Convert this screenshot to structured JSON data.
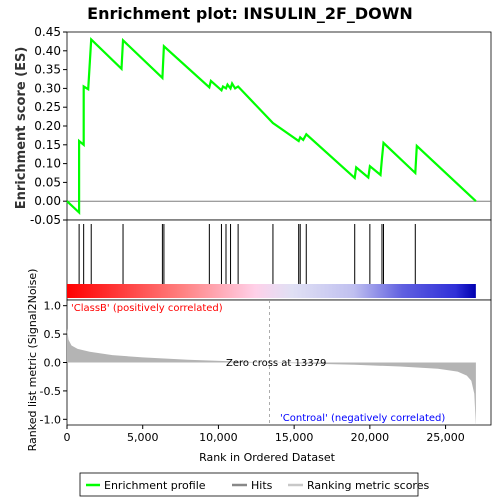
{
  "chart_data": {
    "type": "line",
    "title": "Enrichment plot: INSULIN_2F_DOWN",
    "xlabel": "Rank in Ordered Dataset",
    "xlim": [
      0,
      28000
    ],
    "x_ticks": [
      "0",
      "5,000",
      "10,000",
      "15,000",
      "20,000",
      "25,000"
    ],
    "grid": false,
    "legend_position": "bottom",
    "panels": {
      "enrichment": {
        "ylabel": "Enrichment score (ES)",
        "ylim": [
          -0.05,
          0.45
        ],
        "y_ticks": [
          "-0.05",
          "0.00",
          "0.05",
          "0.10",
          "0.15",
          "0.20",
          "0.25",
          "0.30",
          "0.35",
          "0.40",
          "0.45"
        ],
        "series": [
          {
            "name": "Enrichment profile",
            "color": "#00ff00",
            "points": [
              [
                0,
                0.0
              ],
              [
                800,
                -0.03
              ],
              [
                800,
                0.16
              ],
              [
                1100,
                0.15
              ],
              [
                1100,
                0.305
              ],
              [
                1400,
                0.298
              ],
              [
                1600,
                0.43
              ],
              [
                3600,
                0.352
              ],
              [
                3700,
                0.428
              ],
              [
                6300,
                0.328
              ],
              [
                6400,
                0.412
              ],
              [
                9400,
                0.303
              ],
              [
                9500,
                0.32
              ],
              [
                10200,
                0.295
              ],
              [
                10300,
                0.305
              ],
              [
                10500,
                0.3
              ],
              [
                10600,
                0.31
              ],
              [
                10800,
                0.3
              ],
              [
                10900,
                0.313
              ],
              [
                11100,
                0.3
              ],
              [
                11300,
                0.305
              ],
              [
                13600,
                0.208
              ],
              [
                15300,
                0.16
              ],
              [
                15400,
                0.17
              ],
              [
                15600,
                0.163
              ],
              [
                15800,
                0.178
              ],
              [
                19000,
                0.062
              ],
              [
                19100,
                0.09
              ],
              [
                19900,
                0.063
              ],
              [
                20000,
                0.093
              ],
              [
                20700,
                0.07
              ],
              [
                20800,
                0.115
              ],
              [
                20900,
                0.155
              ],
              [
                23000,
                0.075
              ],
              [
                23100,
                0.147
              ],
              [
                27000,
                0.0
              ]
            ]
          }
        ]
      },
      "hits": {
        "series_name": "Hits",
        "positions": [
          800,
          1100,
          1600,
          3700,
          6300,
          6400,
          9400,
          10200,
          10500,
          10800,
          11300,
          13600,
          15300,
          15400,
          15800,
          19000,
          20000,
          20800,
          20900,
          23000
        ]
      },
      "ranked_metric": {
        "ylabel": "Ranked list metric (Signal2Noise)",
        "ylim": [
          -1.1,
          1.1
        ],
        "y_ticks": [
          "1.0",
          "0.5",
          "0.0",
          "-0.5",
          "-1.0"
        ],
        "series_name": "Ranking metric scores",
        "zero_cross_label": "Zero cross at 13379",
        "zero_cross": 13379,
        "positive_label": "'ClassB' (positively correlated)",
        "negative_label": "'Controal' (negatively correlated)",
        "profile": [
          [
            0,
            0.6
          ],
          [
            100,
            0.4
          ],
          [
            300,
            0.3
          ],
          [
            700,
            0.24
          ],
          [
            1500,
            0.19
          ],
          [
            3000,
            0.13
          ],
          [
            5000,
            0.09
          ],
          [
            8000,
            0.05
          ],
          [
            11000,
            0.02
          ],
          [
            13379,
            0.0
          ],
          [
            16000,
            -0.02
          ],
          [
            19000,
            -0.04
          ],
          [
            22000,
            -0.07
          ],
          [
            24500,
            -0.11
          ],
          [
            25800,
            -0.16
          ],
          [
            26400,
            -0.23
          ],
          [
            26700,
            -0.32
          ],
          [
            26900,
            -0.55
          ],
          [
            27000,
            -1.12
          ]
        ]
      }
    },
    "legend": [
      "Enrichment profile",
      "Hits",
      "Ranking metric scores"
    ]
  }
}
